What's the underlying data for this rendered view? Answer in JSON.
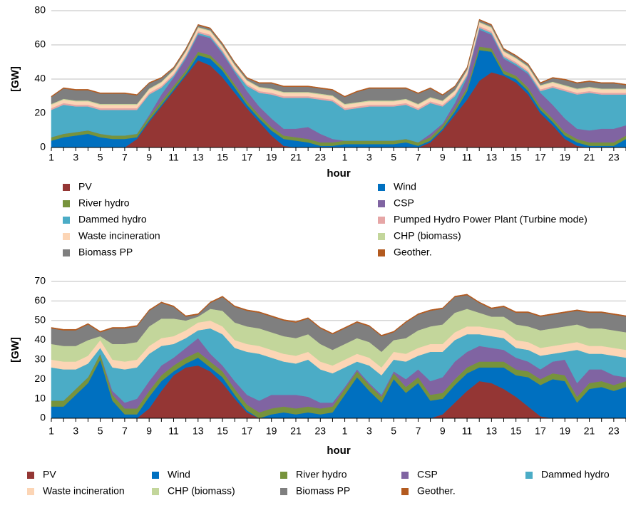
{
  "chart_data": [
    {
      "type": "stacked-area",
      "xlabel": "hour",
      "ylabel": "[GW]",
      "categories": [
        1,
        null,
        3,
        null,
        5,
        null,
        7,
        null,
        9,
        null,
        11,
        null,
        13,
        null,
        15,
        null,
        17,
        null,
        19,
        null,
        21,
        null,
        23,
        null,
        1,
        null,
        3,
        null,
        5,
        null,
        7,
        null,
        9,
        null,
        11,
        null,
        13,
        null,
        15,
        null,
        17,
        null,
        19,
        null,
        21,
        null,
        23,
        null
      ],
      "ylim": [
        0,
        80
      ],
      "yticks": [
        0,
        20,
        40,
        60,
        80
      ],
      "grid": true,
      "series": [
        {
          "name": "PV",
          "color": "#943634",
          "values": [
            0,
            0,
            0,
            0,
            0,
            0,
            0,
            5,
            15,
            24,
            33,
            42,
            51,
            48,
            41,
            32,
            23,
            15,
            7,
            1,
            0,
            0,
            0,
            0,
            0,
            0,
            0,
            0,
            0,
            0,
            0,
            3,
            10,
            19,
            28,
            39,
            44,
            42,
            38,
            31,
            20,
            13,
            5,
            1,
            0,
            0,
            0,
            0
          ]
        },
        {
          "name": "Wind",
          "color": "#0070c0",
          "values": [
            4,
            6,
            7,
            8,
            6,
            5,
            5,
            1,
            1,
            1,
            1,
            1,
            3,
            4,
            4,
            3,
            2,
            2,
            3,
            4,
            4,
            3,
            1,
            1,
            2,
            2,
            2,
            2,
            2,
            3,
            1,
            1,
            1,
            2,
            5,
            18,
            12,
            1,
            2,
            2,
            2,
            2,
            2,
            2,
            1,
            1,
            1,
            5
          ]
        },
        {
          "name": "River hydro",
          "color": "#77933c",
          "values": [
            2,
            2,
            2,
            2,
            2,
            2,
            2,
            2,
            2,
            2,
            2,
            2,
            2,
            2,
            2,
            2,
            2,
            2,
            2,
            2,
            2,
            2,
            2,
            2,
            2,
            2,
            2,
            2,
            2,
            2,
            2,
            2,
            2,
            2,
            2,
            2,
            2,
            2,
            2,
            2,
            2,
            2,
            2,
            2,
            2,
            2,
            2,
            2
          ]
        },
        {
          "name": "CSP",
          "color": "#8064a2",
          "values": [
            0,
            0,
            0,
            0,
            0,
            0,
            0,
            0,
            1,
            4,
            5,
            7,
            10,
            10,
            8,
            7,
            6,
            5,
            5,
            4,
            5,
            7,
            5,
            2,
            0,
            0,
            0,
            0,
            0,
            0,
            0,
            2,
            1,
            3,
            6,
            10,
            8,
            7,
            6,
            8,
            8,
            8,
            8,
            6,
            7,
            8,
            8,
            6
          ]
        },
        {
          "name": "Dammed hydro",
          "color": "#4bacc6",
          "values": [
            16,
            17,
            15,
            14,
            14,
            15,
            15,
            14,
            12,
            4,
            1,
            1,
            1,
            1,
            1,
            1,
            3,
            8,
            14,
            18,
            18,
            17,
            20,
            22,
            18,
            19,
            20,
            20,
            20,
            20,
            19,
            18,
            10,
            4,
            1,
            1,
            1,
            1,
            1,
            1,
            1,
            10,
            16,
            20,
            22,
            20,
            20,
            18
          ]
        },
        {
          "name": "Pumped Hydro Power Plant (Turbine mode)",
          "color": "#e6a6a6",
          "values": [
            1,
            1,
            1,
            1,
            1,
            1,
            1,
            1,
            1,
            1,
            1,
            1,
            1,
            1,
            1,
            1,
            1,
            1,
            1,
            1,
            1,
            1,
            1,
            1,
            1,
            1,
            1,
            1,
            1,
            1,
            1,
            1,
            1,
            1,
            1,
            1,
            1,
            1,
            1,
            1,
            1,
            1,
            1,
            1,
            1,
            1,
            1,
            1
          ]
        },
        {
          "name": "Waste incineration",
          "color": "#fcd5b5",
          "values": [
            2,
            2,
            2,
            2,
            2,
            2,
            2,
            2,
            2,
            2,
            2,
            2,
            2,
            2,
            2,
            2,
            2,
            2,
            2,
            2,
            2,
            2,
            2,
            2,
            2,
            2,
            2,
            2,
            2,
            2,
            2,
            2,
            2,
            2,
            2,
            2,
            2,
            2,
            2,
            2,
            2,
            2,
            2,
            2,
            2,
            2,
            2,
            2
          ]
        },
        {
          "name": "CHP (biomass)",
          "color": "#c3d69b",
          "values": [
            0.5,
            0.5,
            0.5,
            0.5,
            0.5,
            0.5,
            0.5,
            0.5,
            0.5,
            0.5,
            0.5,
            0.5,
            0.5,
            0.5,
            0.5,
            0.5,
            0.5,
            0.5,
            0.5,
            0.5,
            0.5,
            0.5,
            0.5,
            0.5,
            0.5,
            0.5,
            0.5,
            0.5,
            0.5,
            0.5,
            0.5,
            0.5,
            0.5,
            0.5,
            0.5,
            0.5,
            0.5,
            0.5,
            0.5,
            0.5,
            0.5,
            0.5,
            0.5,
            0.5,
            0.5,
            0.5,
            0.5,
            0.5
          ]
        },
        {
          "name": "Biomass PP",
          "color": "#7f7f7f",
          "values": [
            4,
            6,
            6,
            6,
            6,
            6,
            6,
            5,
            3,
            2,
            1,
            1,
            1,
            1,
            1,
            1,
            1,
            2,
            3,
            3,
            3,
            3,
            3,
            3,
            4,
            6,
            7,
            7,
            7,
            6,
            6,
            5,
            3,
            2,
            1,
            1,
            1,
            1,
            1,
            1,
            1,
            2,
            3,
            3,
            3,
            3,
            3,
            2
          ]
        },
        {
          "name": "Geother.",
          "color": "#b35a1f",
          "values": [
            0.5,
            0.5,
            0.5,
            0.5,
            0.5,
            0.5,
            0.5,
            0.5,
            0.5,
            0.5,
            0.5,
            0.5,
            0.5,
            0.5,
            0.5,
            0.5,
            0.5,
            0.5,
            0.5,
            0.5,
            0.5,
            0.5,
            0.5,
            0.5,
            0.5,
            0.5,
            0.5,
            0.5,
            0.5,
            0.5,
            0.5,
            0.5,
            0.5,
            0.5,
            0.5,
            0.5,
            0.5,
            0.5,
            0.5,
            0.5,
            0.5,
            0.5,
            0.5,
            0.5,
            0.5,
            0.5,
            0.5,
            0.5
          ]
        }
      ]
    },
    {
      "type": "stacked-area",
      "xlabel": "hour",
      "ylabel": "[GW]",
      "categories": [
        1,
        null,
        3,
        null,
        5,
        null,
        7,
        null,
        9,
        null,
        11,
        null,
        13,
        null,
        15,
        null,
        17,
        null,
        19,
        null,
        21,
        null,
        23,
        null,
        1,
        null,
        3,
        null,
        5,
        null,
        7,
        null,
        9,
        null,
        11,
        null,
        13,
        null,
        15,
        null,
        17,
        null,
        19,
        null,
        21,
        null,
        23,
        null
      ],
      "ylim": [
        0,
        70
      ],
      "yticks": [
        0,
        10,
        20,
        30,
        40,
        50,
        60,
        70
      ],
      "grid": true,
      "series": [
        {
          "name": "PV",
          "color": "#943634",
          "values": [
            0,
            0,
            0,
            0,
            0,
            0,
            0,
            0,
            5,
            14,
            22,
            26,
            27,
            24,
            18,
            10,
            3,
            0,
            0,
            0,
            0,
            0,
            0,
            0,
            0,
            0,
            0,
            0,
            0,
            0,
            0,
            0,
            2,
            8,
            14,
            19,
            18,
            15,
            11,
            6,
            1,
            0,
            0,
            0,
            0,
            0,
            0,
            0
          ]
        },
        {
          "name": "Wind",
          "color": "#0070c0",
          "values": [
            6,
            6,
            12,
            18,
            30,
            9,
            2,
            2,
            6,
            5,
            2,
            2,
            4,
            2,
            3,
            2,
            1,
            0,
            2,
            3,
            2,
            3,
            2,
            3,
            12,
            21,
            14,
            8,
            20,
            13,
            18,
            9,
            8,
            9,
            9,
            7,
            8,
            11,
            11,
            15,
            16,
            20,
            19,
            8,
            15,
            16,
            14,
            16
          ]
        },
        {
          "name": "River hydro",
          "color": "#77933c",
          "values": [
            3,
            3,
            3,
            3,
            3,
            3,
            3,
            3,
            3,
            3,
            3,
            3,
            3,
            3,
            3,
            3,
            3,
            3,
            3,
            3,
            3,
            3,
            3,
            3,
            3,
            3,
            3,
            3,
            3,
            3,
            3,
            3,
            3,
            3,
            3,
            3,
            3,
            3,
            3,
            3,
            3,
            3,
            3,
            3,
            3,
            3,
            3,
            3
          ]
        },
        {
          "name": "CSP",
          "color": "#8064a2",
          "values": [
            0,
            0,
            0,
            0,
            0,
            2,
            3,
            5,
            5,
            5,
            4,
            5,
            7,
            4,
            3,
            4,
            5,
            6,
            7,
            6,
            7,
            5,
            3,
            2,
            1,
            1,
            1,
            1,
            1,
            4,
            4,
            7,
            8,
            9,
            8,
            8,
            7,
            6,
            6,
            5,
            5,
            6,
            8,
            7,
            7,
            6,
            5,
            2
          ]
        },
        {
          "name": "Dammed hydro",
          "color": "#4bacc6",
          "values": [
            17,
            16,
            10,
            7,
            3,
            12,
            17,
            16,
            14,
            10,
            7,
            5,
            4,
            13,
            16,
            17,
            22,
            24,
            19,
            17,
            16,
            19,
            17,
            15,
            10,
            4,
            9,
            10,
            6,
            9,
            7,
            15,
            13,
            11,
            9,
            6,
            6,
            6,
            5,
            6,
            7,
            4,
            4,
            17,
            8,
            8,
            10,
            10
          ]
        },
        {
          "name": "Waste incineration",
          "color": "#fcd5b5",
          "values": [
            4,
            4,
            4,
            4,
            4,
            4,
            4,
            4,
            4,
            4,
            4,
            4,
            4,
            4,
            4,
            4,
            4,
            4,
            4,
            4,
            4,
            4,
            4,
            4,
            4,
            4,
            4,
            4,
            4,
            4,
            4,
            4,
            4,
            4,
            4,
            4,
            4,
            4,
            4,
            4,
            4,
            4,
            4,
            4,
            4,
            4,
            4,
            4
          ]
        },
        {
          "name": "CHP (biomass)",
          "color": "#c3d69b",
          "values": [
            8,
            8,
            8,
            8,
            2,
            8,
            9,
            9,
            10,
            10,
            9,
            5,
            3,
            6,
            8,
            9,
            9,
            9,
            9,
            9,
            9,
            9,
            9,
            8,
            8,
            8,
            8,
            8,
            6,
            8,
            9,
            9,
            10,
            10,
            9,
            7,
            6,
            7,
            8,
            8,
            9,
            9,
            9,
            9,
            9,
            9,
            9,
            9
          ]
        },
        {
          "name": "Biomass PP",
          "color": "#7f7f7f",
          "values": [
            8,
            8,
            8,
            8,
            2,
            8,
            8,
            8,
            8,
            8,
            6,
            2,
            1,
            3,
            7,
            8,
            8,
            8,
            8,
            8,
            8,
            8,
            8,
            8,
            8,
            8,
            8,
            8,
            4,
            8,
            8,
            8,
            8,
            8,
            7,
            5,
            4,
            5,
            6,
            7,
            7,
            7,
            7,
            7,
            8,
            8,
            8,
            8
          ]
        },
        {
          "name": "Geother.",
          "color": "#b35a1f",
          "values": [
            0.5,
            0.5,
            0.5,
            0.5,
            0.5,
            0.5,
            0.5,
            0.5,
            0.5,
            0.5,
            0.5,
            0.5,
            0.5,
            0.5,
            0.5,
            0.5,
            0.5,
            0.5,
            0.5,
            0.5,
            0.5,
            0.5,
            0.5,
            0.5,
            0.5,
            0.5,
            0.5,
            0.5,
            0.5,
            0.5,
            0.5,
            0.5,
            0.5,
            0.5,
            0.5,
            0.5,
            0.5,
            0.5,
            0.5,
            0.5,
            0.5,
            0.5,
            0.5,
            0.5,
            0.5,
            0.5,
            0.5,
            0.5
          ]
        }
      ]
    }
  ]
}
